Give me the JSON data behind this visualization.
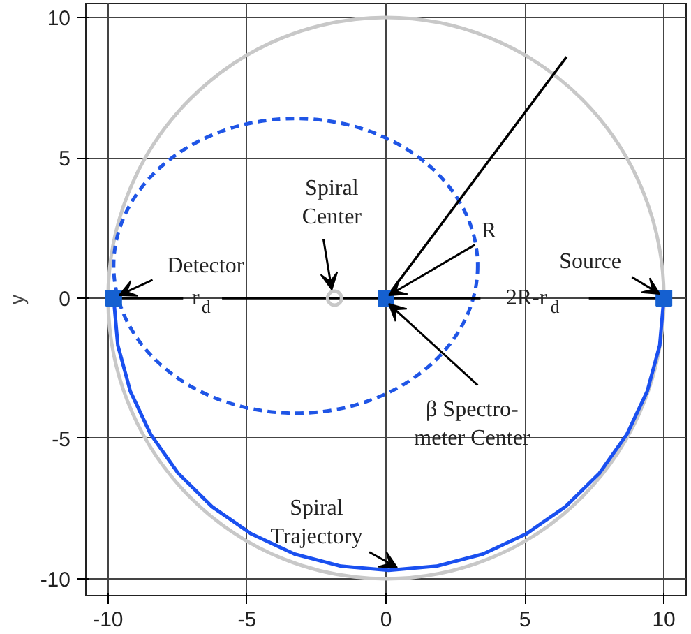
{
  "chart_data": {
    "type": "line",
    "ylabel": "y",
    "xlim": [
      -10.8,
      10.8
    ],
    "ylim": [
      -10.6,
      10.5
    ],
    "xticks": [
      -10,
      -5,
      0,
      5,
      10
    ],
    "yticks": [
      -10,
      -5,
      0,
      5,
      10
    ],
    "grid": true,
    "series": [
      {
        "color": "#1a50f0",
        "x": [
          -9.8,
          -9.65,
          -9.2,
          -8.47,
          -7.48,
          -6.26,
          -4.85,
          -3.29,
          -1.62,
          0.1,
          1.82,
          3.49,
          5.05,
          6.46,
          7.68,
          8.67,
          9.4,
          9.85,
          10
        ],
        "values": [
          0,
          -1.68,
          -3.32,
          -4.85,
          -6.24,
          -7.43,
          -8.4,
          -9.12,
          -9.55,
          -9.7,
          -9.55,
          -9.12,
          -8.4,
          -7.43,
          -6.24,
          -4.85,
          -3.32,
          -1.68,
          0
        ]
      },
      {
        "color": "#000000",
        "x": [
          -9.8,
          -7.3,
          -6.3,
          -5.9,
          -1.85,
          3.4,
          5.3,
          7.3,
          10
        ],
        "values": [
          0,
          0,
          null,
          0,
          0,
          0,
          null,
          0,
          0
        ]
      },
      {
        "color": "#000000",
        "x": [
          0,
          6.5
        ],
        "values": [
          0,
          8.6
        ]
      },
      {
        "type": "scatter",
        "marker": "square",
        "color": "#1560d0",
        "x": [
          -9.8,
          0,
          10
        ],
        "values": [
          0,
          0,
          0
        ]
      },
      {
        "type": "scatter",
        "marker": "circle",
        "color": "#c8c8c8",
        "x": [
          -1.85
        ],
        "values": [
          0
        ]
      }
    ],
    "annotations": [
      {
        "text": "Detector",
        "x": -9.6,
        "y": 0.1
      },
      {
        "text": "Spiral\nCenter",
        "x": -1.95,
        "y": 0.3
      },
      {
        "text": "R",
        "x": 0.1,
        "y": 0.1
      },
      {
        "text": "Source",
        "x": 9.85,
        "y": 0.15
      },
      {
        "text": "r$_{d}$",
        "x": -7.3,
        "y": 0
      },
      {
        "text": "2R-r$_{d}$",
        "x": 3.4,
        "y": 0
      },
      {
        "text": "β Spectro-\nmeter Center",
        "x": 0.1,
        "y": -0.2
      },
      {
        "text": "Spiral\nTrajectory",
        "x": 0.4,
        "y": -9.6
      }
    ]
  }
}
